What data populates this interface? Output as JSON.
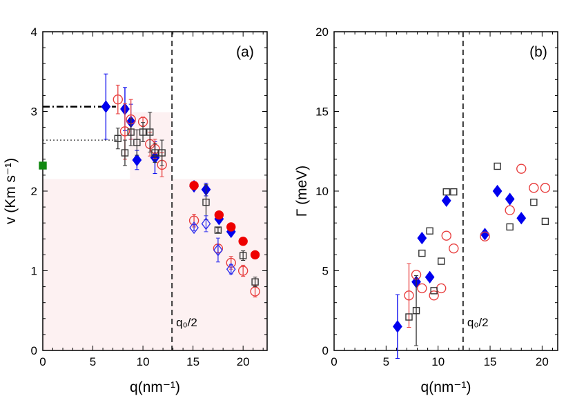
{
  "chart_data": [
    {
      "type": "scatter",
      "panel_label": "(a)",
      "xlabel": "q(nm⁻¹)",
      "ylabel": "v (Km s⁻¹)",
      "xlim": [
        0,
        22.4
      ],
      "ylim": [
        0,
        4
      ],
      "xticks": [
        0,
        5,
        10,
        15,
        20
      ],
      "yticks": [
        0,
        1,
        2,
        3,
        4
      ],
      "grid": false,
      "annotation": "q₀/2",
      "vline_x": 12.9,
      "shaded_color": "#fdf1f2",
      "shaded_regions": [
        {
          "x": [
            0,
            22.4
          ],
          "y": [
            0,
            2.15
          ]
        },
        {
          "x": [
            8.7,
            12.9
          ],
          "y": [
            2.15,
            2.99
          ]
        }
      ],
      "hlines": [
        {
          "y": 3.06,
          "x": [
            0,
            7.3
          ],
          "style": "dash-dot",
          "color": "#000000"
        },
        {
          "y": 2.64,
          "x": [
            0,
            7.5
          ],
          "style": "dotted",
          "color": "#555555"
        }
      ],
      "series": [
        {
          "marker": "filled-diamond",
          "color": "#0000ee",
          "x": [
            6.3,
            8.2,
            8.8,
            9.4,
            11.2,
            15.1,
            16.3,
            17.6,
            18.8
          ],
          "y": [
            3.06,
            3.03,
            2.87,
            2.39,
            2.42,
            2.06,
            2.02,
            1.65,
            1.49
          ],
          "err": [
            0.41,
            0.27,
            0.22,
            0.12,
            0.2,
            0.03,
            0.08,
            0.04,
            0.04
          ]
        },
        {
          "marker": "open-circle",
          "color": "#e84040",
          "x": [
            7.5,
            8.2,
            8.8,
            10.0,
            10.7,
            11.2,
            11.9,
            15.1,
            17.5,
            18.8,
            20.0,
            21.2
          ],
          "y": [
            3.15,
            2.75,
            2.9,
            2.87,
            2.59,
            2.53,
            2.33,
            1.63,
            1.28,
            1.1,
            1.0,
            0.74
          ],
          "err": [
            0.18,
            0.35,
            0.25,
            0.06,
            0.15,
            0.12,
            0.15,
            0.08,
            0.05,
            0.08,
            0.07,
            0.07
          ]
        },
        {
          "marker": "open-square",
          "color": "#333333",
          "x": [
            7.5,
            8.2,
            8.8,
            9.4,
            10.0,
            10.7,
            11.2,
            11.9,
            16.3,
            17.5,
            20.0,
            21.2
          ],
          "y": [
            2.66,
            2.48,
            2.74,
            2.61,
            2.74,
            2.74,
            2.48,
            2.48,
            1.86,
            1.51,
            1.19,
            0.86
          ],
          "err": [
            0.13,
            0.16,
            0.17,
            0.16,
            0.12,
            0.25,
            0.12,
            0.16,
            0.22,
            0.03,
            0.06,
            0.06
          ]
        },
        {
          "marker": "filled-circle",
          "color": "#ee0000",
          "x": [
            15.1,
            17.6,
            18.8,
            20.0,
            21.2
          ],
          "y": [
            2.07,
            1.7,
            1.55,
            1.37,
            1.2
          ],
          "err": [
            0,
            0,
            0.03,
            0,
            0.03
          ]
        },
        {
          "marker": "open-diamond",
          "color": "#3333ee",
          "x": [
            15.1,
            16.3,
            17.5,
            18.8
          ],
          "y": [
            1.54,
            1.59,
            1.26,
            1.02
          ],
          "err": [
            0.04,
            0.1,
            0.15,
            0.06
          ]
        },
        {
          "marker": "filled-square",
          "color": "#118811",
          "x": [
            0
          ],
          "y": [
            2.32
          ],
          "err": [
            0
          ]
        }
      ]
    },
    {
      "type": "scatter",
      "panel_label": "(b)",
      "xlabel": "q(nm⁻¹)",
      "ylabel": "Γ (meV)",
      "xlim": [
        0,
        21.5
      ],
      "ylim": [
        0,
        20
      ],
      "xticks": [
        0,
        5,
        10,
        15,
        20
      ],
      "yticks": [
        0,
        5,
        10,
        15,
        20
      ],
      "grid": false,
      "annotation": "q₀/2",
      "vline_x": 12.4,
      "series": [
        {
          "marker": "filled-diamond",
          "color": "#0000ee",
          "x": [
            6.1,
            7.9,
            8.45,
            9.2,
            10.8,
            14.5,
            15.7,
            16.9,
            18.0
          ],
          "y": [
            1.5,
            4.3,
            7.05,
            4.6,
            9.4,
            7.3,
            10.0,
            9.5,
            8.3
          ],
          "err": [
            2.0,
            0,
            0,
            0,
            0,
            0,
            0,
            0,
            0
          ]
        },
        {
          "marker": "open-circle",
          "color": "#e84040",
          "x": [
            7.2,
            7.9,
            8.45,
            9.6,
            10.3,
            10.8,
            11.5,
            14.5,
            16.9,
            18.0,
            19.2,
            20.3
          ],
          "y": [
            3.45,
            4.75,
            3.9,
            3.45,
            3.9,
            7.2,
            6.4,
            7.15,
            8.8,
            11.4,
            10.2,
            10.2
          ],
          "err": [
            2.0,
            0,
            0,
            0,
            0,
            0,
            0,
            0,
            0,
            0,
            0,
            0
          ]
        },
        {
          "marker": "open-square",
          "color": "#333333",
          "x": [
            7.2,
            7.9,
            8.45,
            9.2,
            9.6,
            10.3,
            10.8,
            11.5,
            15.7,
            16.9,
            19.2,
            20.3
          ],
          "y": [
            2.1,
            2.5,
            6.1,
            7.5,
            3.75,
            5.6,
            9.95,
            9.95,
            11.56,
            7.75,
            9.3,
            8.1
          ],
          "err": [
            0,
            2.2,
            0,
            0,
            0,
            0,
            0,
            0,
            0,
            0,
            0,
            0
          ]
        }
      ]
    }
  ]
}
